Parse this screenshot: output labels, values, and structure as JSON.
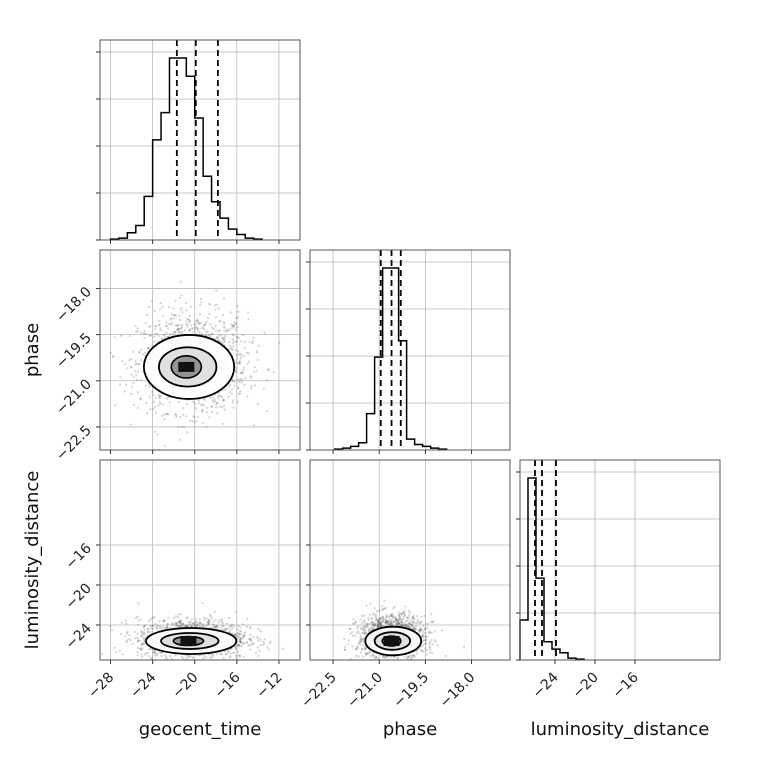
{
  "chart_data": {
    "type": "corner",
    "parameters": [
      "geocent_time",
      "phase",
      "luminosity_distance"
    ],
    "grid": true,
    "axes": {
      "geocent_time": {
        "range": [
          -29,
          -10
        ],
        "ticks": [
          -28,
          -24,
          -20,
          -16,
          -12
        ],
        "tick_labels": [
          "−28",
          "−24",
          "−20",
          "−16",
          "−12"
        ]
      },
      "phase": {
        "range": [
          -23.25,
          -16.75
        ],
        "ticks": [
          -22.5,
          -21.0,
          -19.5,
          -18.0
        ],
        "tick_labels": [
          "−22.5",
          "−21.0",
          "−19.5",
          "−18.0"
        ]
      },
      "luminosity_distance": {
        "range": [
          -27.5,
          -7.5
        ],
        "ticks": [
          -24,
          -20,
          -16
        ],
        "tick_labels": [
          "−24",
          "−20",
          "−16"
        ]
      }
    },
    "y_tick_labels": {
      "phase": [
        "−18.0",
        "−19.5",
        "−21.0",
        "−22.5"
      ],
      "luminosity_distance": [
        "−16",
        "−20",
        "−24"
      ]
    },
    "histograms": [
      {
        "parameter": "geocent_time",
        "bin_start": -28,
        "bin_width": 0.8,
        "counts": [
          0.5,
          1,
          4,
          8,
          24,
          55,
          70,
          100,
          100,
          90,
          67,
          35,
          21,
          12,
          6,
          3,
          1,
          0.5
        ],
        "quantiles": [
          -21.7,
          -19.9,
          -17.8
        ]
      },
      {
        "parameter": "phase",
        "bin_start": -22.45,
        "bin_width": 0.26,
        "counts": [
          0.5,
          1,
          2,
          4,
          20,
          51,
          100,
          100,
          60,
          6,
          3,
          2,
          1,
          0.5
        ],
        "quantiles": [
          -20.95,
          -20.6,
          -20.3
        ]
      },
      {
        "parameter": "luminosity_distance",
        "bin_start": -27.5,
        "bin_width": 0.8,
        "counts": [
          22,
          100,
          45,
          10,
          6,
          4,
          1,
          0.5
        ],
        "quantiles": [
          -26.0,
          -25.3,
          -23.9
        ]
      }
    ],
    "density": [
      {
        "x": "geocent_time",
        "y": "phase",
        "center": [
          -20.2,
          -20.4
        ],
        "spread": [
          2.6,
          0.8
        ],
        "peak": [
          -20.8,
          -20.55
        ]
      },
      {
        "x": "geocent_time",
        "y": "luminosity_distance",
        "center": [
          -20.2,
          -25.4
        ],
        "spread": [
          2.6,
          1.0
        ],
        "peak": [
          -20.6,
          -25.6
        ]
      },
      {
        "x": "phase",
        "y": "luminosity_distance",
        "center": [
          -20.6,
          -25.2
        ],
        "spread": [
          0.55,
          1.1
        ],
        "peak": [
          -20.6,
          -25.6
        ]
      }
    ]
  }
}
